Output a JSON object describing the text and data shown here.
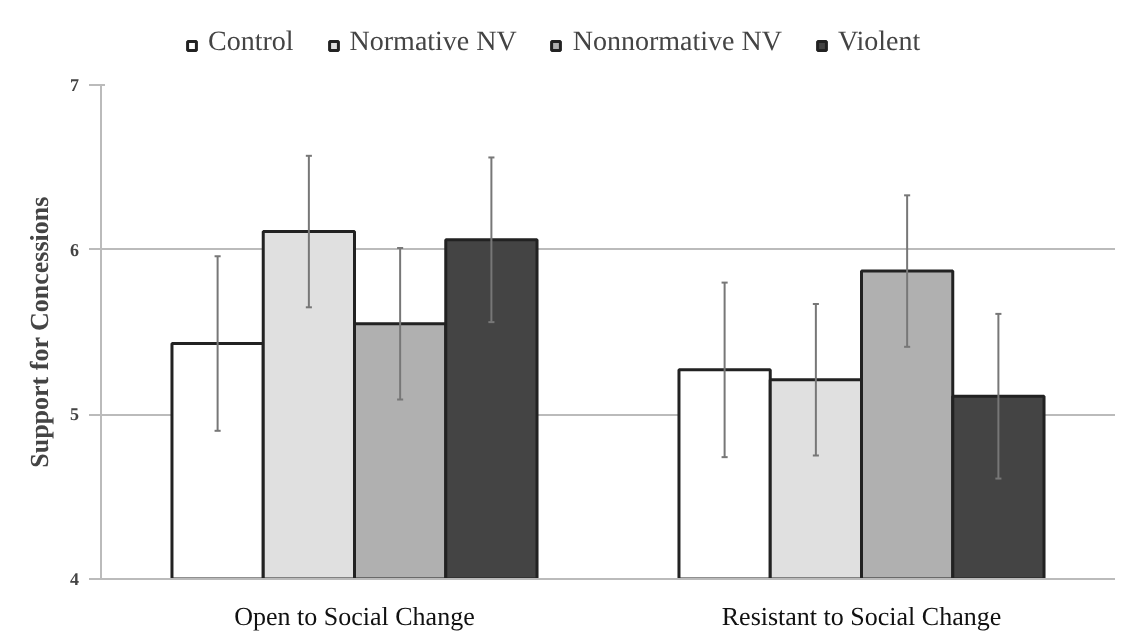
{
  "chart_data": {
    "type": "bar",
    "ylabel": "Support for Concessions",
    "categories": [
      "Open to Social Change",
      "Resistant to Social Change"
    ],
    "series": [
      {
        "name": "Control",
        "color": "#ffffff",
        "values": [
          5.43,
          5.27
        ],
        "errors": [
          0.53,
          0.53
        ]
      },
      {
        "name": "Normative NV",
        "color": "#e0e0e0",
        "values": [
          6.11,
          5.21
        ],
        "errors": [
          0.46,
          0.46
        ]
      },
      {
        "name": "Nonnormative NV",
        "color": "#b0b0b0",
        "values": [
          5.55,
          5.87
        ],
        "errors": [
          0.46,
          0.46
        ]
      },
      {
        "name": "Violent",
        "color": "#444444",
        "values": [
          6.06,
          5.11
        ],
        "errors": [
          0.5,
          0.5
        ]
      }
    ],
    "ylim": [
      4,
      7
    ],
    "yticks": [
      4,
      5,
      6,
      7
    ],
    "grid": "y",
    "legend": "top"
  }
}
